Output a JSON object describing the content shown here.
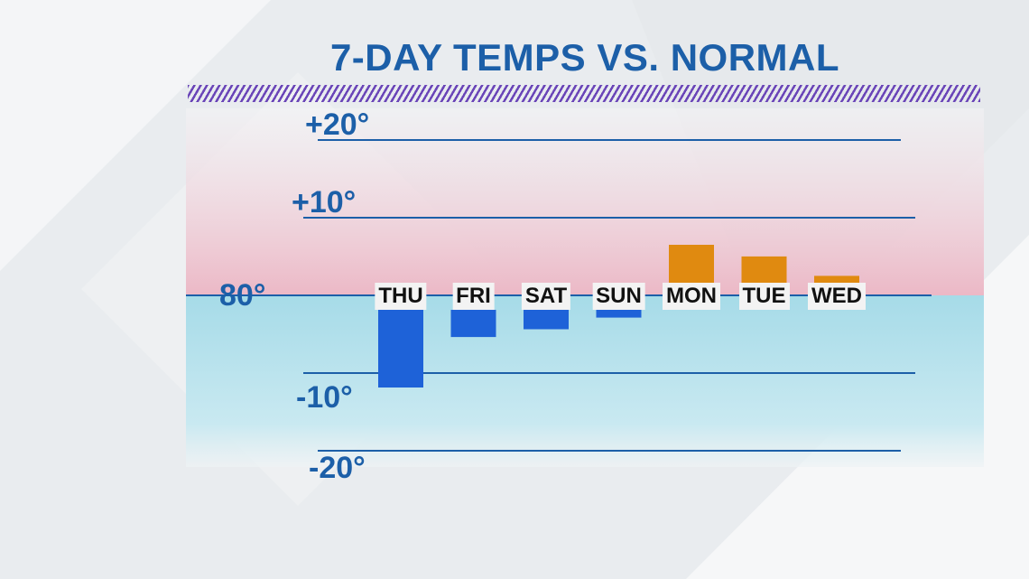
{
  "title": "7-DAY TEMPS VS. NORMAL",
  "chart_data": {
    "type": "bar",
    "title": "7-DAY TEMPS VS. NORMAL",
    "baseline_label": "80°",
    "categories": [
      "THU",
      "FRI",
      "SAT",
      "SUN",
      "MON",
      "TUE",
      "WED"
    ],
    "values": [
      -10,
      -3.5,
      -2.5,
      -1,
      5,
      3.5,
      1
    ],
    "ylim": [
      -20,
      20
    ],
    "yticks": [
      {
        "value": 20,
        "label": "+20°"
      },
      {
        "value": 10,
        "label": "+10°"
      },
      {
        "value": -10,
        "label": "-10°"
      },
      {
        "value": -20,
        "label": "-20°"
      }
    ],
    "colors": {
      "above": "#e08a10",
      "below": "#1e62d8",
      "axis": "#1c5fa8"
    }
  }
}
